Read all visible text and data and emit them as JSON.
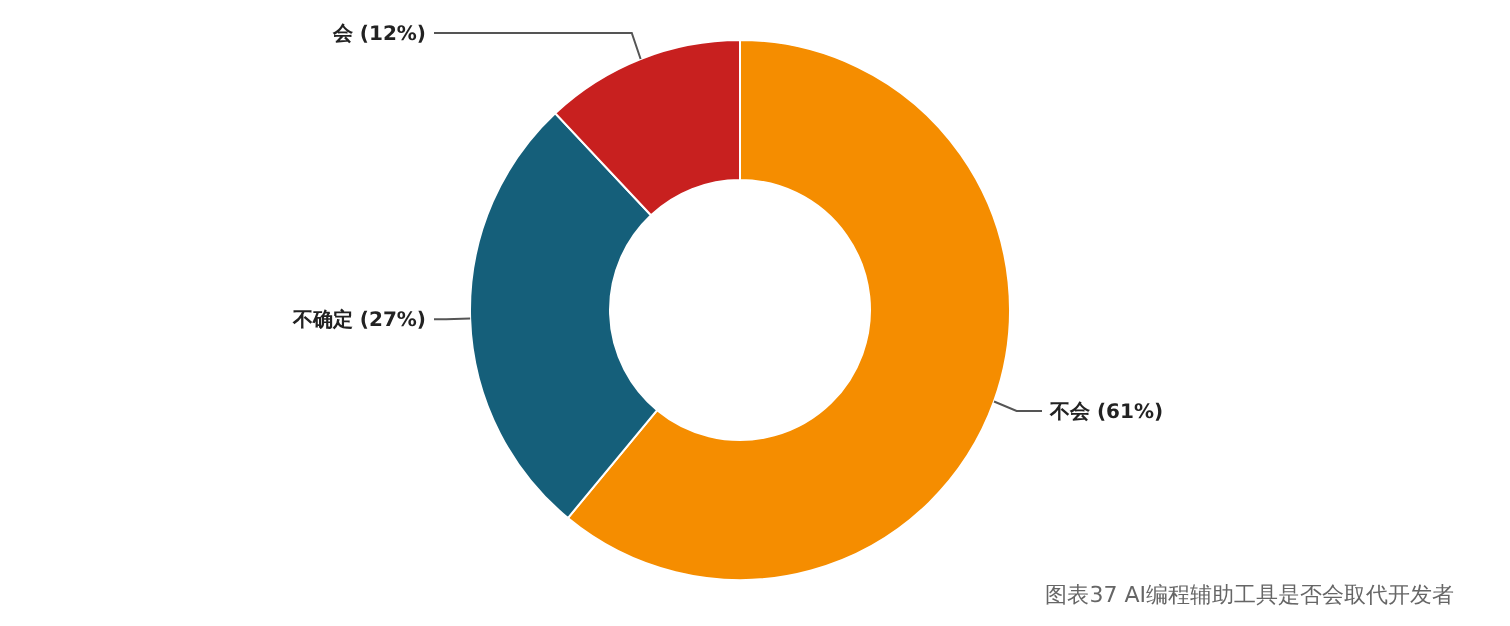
{
  "chart_data": {
    "type": "donut",
    "categories": [
      "不会",
      "不确定",
      "会"
    ],
    "values": [
      61,
      27,
      12
    ],
    "colors": [
      "#f58d00",
      "#155f7a",
      "#c8201f"
    ],
    "value_labels": [
      "(61%)",
      "(27%)",
      "(12%)"
    ],
    "annotations": [
      "图表37 AI编程辅助工具是否会取代开发者"
    ]
  }
}
